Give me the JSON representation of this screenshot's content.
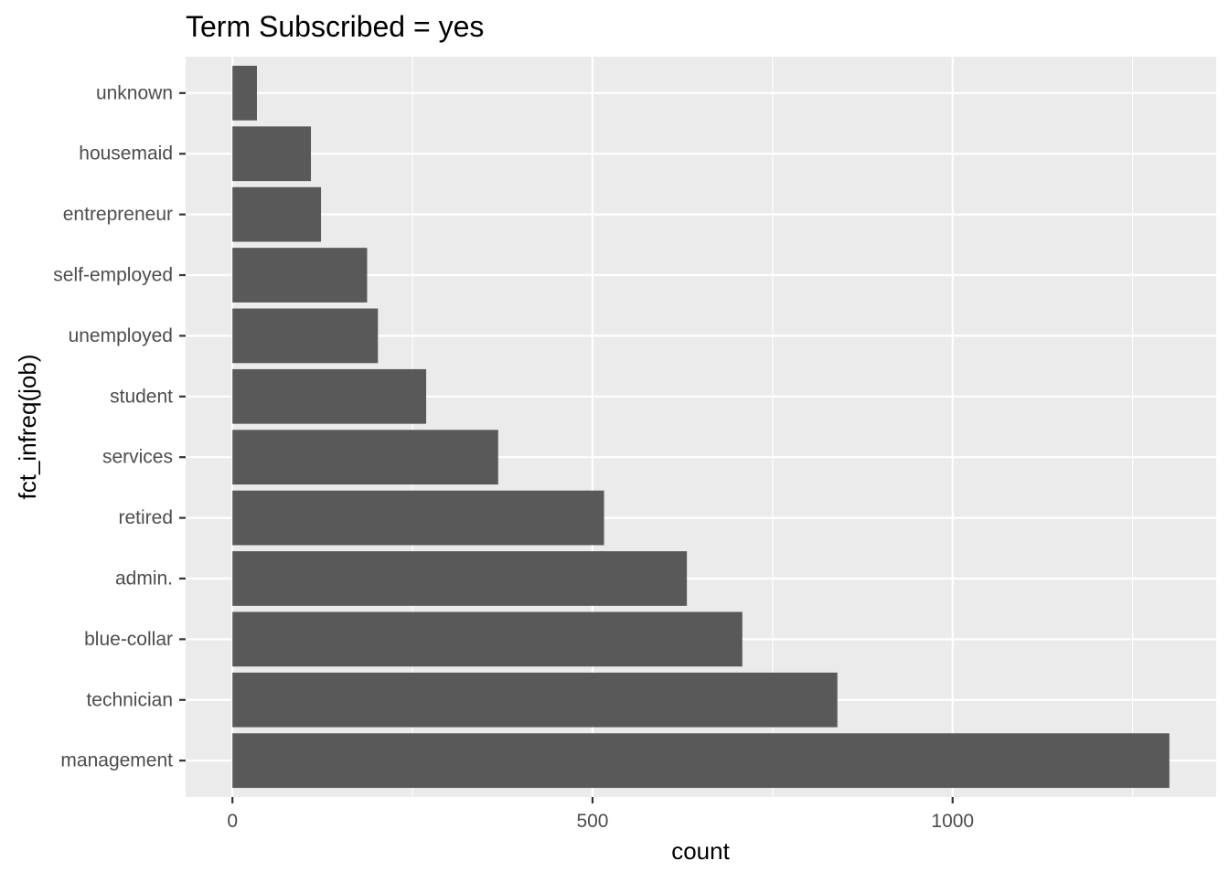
{
  "chart_data": {
    "type": "bar",
    "orientation": "horizontal",
    "title": "Term Subscribed = yes",
    "xlabel": "count",
    "ylabel": "fct_infreq(job)",
    "categories": [
      "management",
      "technician",
      "blue-collar",
      "admin.",
      "retired",
      "services",
      "student",
      "unemployed",
      "self-employed",
      "entrepreneur",
      "housemaid",
      "unknown"
    ],
    "values": [
      1301,
      840,
      708,
      631,
      516,
      369,
      269,
      202,
      187,
      123,
      109,
      34
    ],
    "x_ticks": [
      "0",
      "500",
      "1000"
    ],
    "x_tick_values": [
      0,
      500,
      1000
    ],
    "x_minor_values": [
      250,
      750,
      1250
    ],
    "xlim": [
      -65,
      1366
    ],
    "grid": true,
    "legend": "none",
    "colors": {
      "bar": "#595959",
      "panel": "#ebebeb",
      "grid": "#ffffff",
      "tick_text": "#4d4d4d",
      "title_text": "#000000"
    }
  }
}
